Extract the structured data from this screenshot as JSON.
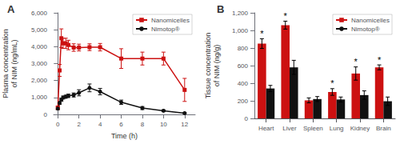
{
  "chart_data": [
    {
      "type": "line",
      "title": "A",
      "xlabel": "Time (h)",
      "ylabel": "Plasma concentration\nof NIM (ng/mL)",
      "x": [
        0,
        0.167,
        0.333,
        0.5,
        0.75,
        1.0,
        1.5,
        2.0,
        3.0,
        4.0,
        6.0,
        8.0,
        10.0,
        12.0
      ],
      "xlim": [
        -0.4,
        13.0
      ],
      "xticks": [
        0,
        2,
        4,
        6,
        8,
        10,
        12
      ],
      "ylim": [
        0,
        6000
      ],
      "yticks": [
        0,
        {
          "value": 1000,
          "label": "1,000"
        },
        {
          "value": 2000,
          "label": "2,000"
        },
        {
          "value": 3000,
          "label": "3,000"
        },
        {
          "value": 4000,
          "label": "4,000"
        },
        {
          "value": 5000,
          "label": "5,000"
        },
        {
          "value": 6000,
          "label": "6,000"
        }
      ],
      "series": [
        {
          "name": "Nanomicelles",
          "color": "#cc1111",
          "marker": "square",
          "values": [
            400,
            2600,
            4500,
            4200,
            4200,
            4100,
            3950,
            3950,
            3970,
            3970,
            3300,
            3300,
            3300,
            1450
          ],
          "errors": [
            100,
            350,
            550,
            300,
            300,
            280,
            220,
            200,
            200,
            220,
            580,
            380,
            380,
            680
          ]
        },
        {
          "name": "Nimotop®",
          "color": "#111111",
          "marker": "circle",
          "values": [
            350,
            680,
            870,
            1000,
            1050,
            1100,
            1150,
            1280,
            1570,
            1350,
            720,
            380,
            220,
            80
          ],
          "errors": [
            70,
            90,
            90,
            90,
            90,
            100,
            120,
            180,
            230,
            190,
            130,
            90,
            55,
            25
          ]
        }
      ],
      "legend": "upper right",
      "grid": false
    },
    {
      "type": "bar",
      "title": "B",
      "ylabel": "Tissue concentration\nof NIM (ng/g)",
      "categories": [
        "Heart",
        "Liver",
        "Spleen",
        "Lung",
        "Kidney",
        "Brain"
      ],
      "ylim": [
        0,
        1200
      ],
      "yticks": [
        0,
        200,
        400,
        600,
        800,
        {
          "value": 1000,
          "label": "1,000"
        },
        {
          "value": 1200,
          "label": "1,200"
        }
      ],
      "series": [
        {
          "name": "Nanomicelles",
          "color": "#cc1111",
          "values": [
            850,
            1060,
            205,
            300,
            510,
            580
          ],
          "errors": [
            55,
            45,
            28,
            38,
            75,
            28
          ]
        },
        {
          "name": "Nimotop®",
          "color": "#111111",
          "values": [
            340,
            580,
            220,
            215,
            265,
            195
          ],
          "errors": [
            35,
            80,
            28,
            28,
            48,
            48
          ]
        }
      ],
      "annotations": [
        {
          "text": "*",
          "series": "Nanomicelles",
          "category": "Heart"
        },
        {
          "text": "*",
          "series": "Nanomicelles",
          "category": "Liver"
        },
        {
          "text": "*",
          "series": "Nanomicelles",
          "category": "Lung"
        },
        {
          "text": "*",
          "series": "Nanomicelles",
          "category": "Kidney"
        },
        {
          "text": "*",
          "series": "Nanomicelles",
          "category": "Brain"
        }
      ],
      "legend": "upper right",
      "grid": false
    }
  ]
}
